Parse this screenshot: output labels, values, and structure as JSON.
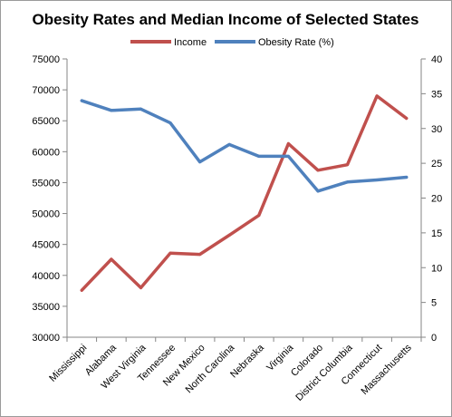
{
  "chart_data": {
    "type": "line",
    "title": "Obesity Rates and Median Income of Selected States",
    "categories": [
      "Mississippi",
      "Alabama",
      "West Virginia",
      "Tennessee",
      "New Mexico",
      "North Carolina",
      "Nebraska",
      "Virginia",
      "Colorado",
      "District Columbia",
      "Connecticut",
      "Massachusetts"
    ],
    "series": [
      {
        "name": "Income",
        "axis": "left",
        "color": "#c0504d",
        "values": [
          37600,
          42600,
          38000,
          43600,
          43400,
          46500,
          49700,
          61300,
          57000,
          57900,
          69000,
          65400
        ]
      },
      {
        "name": "Obesity Rate (%)",
        "axis": "right",
        "color": "#4f81bd",
        "values": [
          34.0,
          32.6,
          32.8,
          30.8,
          25.2,
          27.7,
          26.0,
          26.0,
          21.0,
          22.3,
          22.6,
          23.0
        ]
      }
    ],
    "y_left": {
      "min": 30000,
      "max": 75000,
      "ticks": [
        "30000",
        "35000",
        "40000",
        "45000",
        "50000",
        "55000",
        "60000",
        "65000",
        "70000",
        "75000"
      ]
    },
    "y_right": {
      "min": 0,
      "max": 40,
      "ticks": [
        "0",
        "5",
        "10",
        "15",
        "20",
        "25",
        "30",
        "35",
        "40"
      ]
    },
    "legend_position": "top",
    "grid": false
  }
}
